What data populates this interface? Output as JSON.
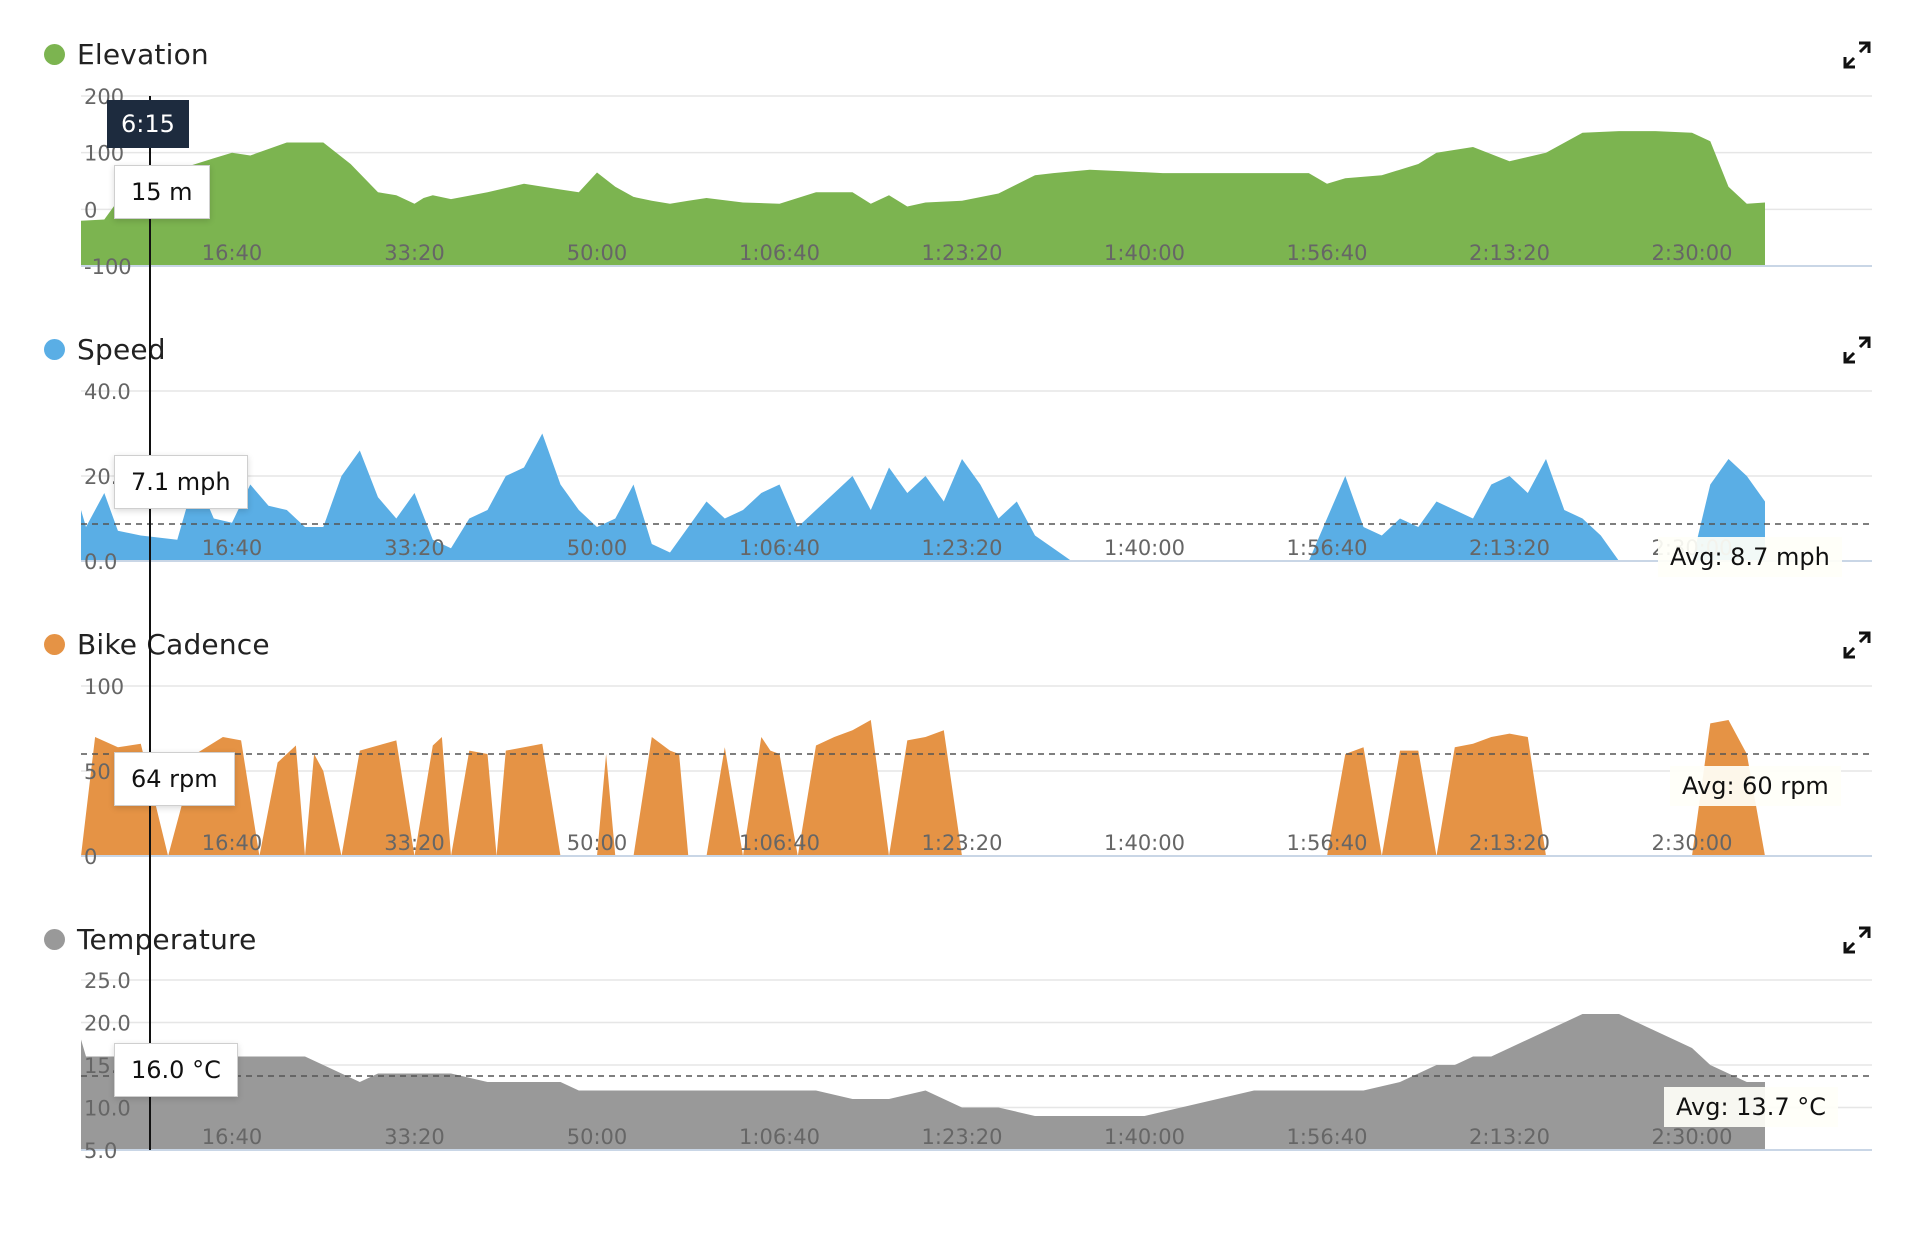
{
  "hover": {
    "time": "6:15"
  },
  "x_ticks": [
    "16:40",
    "33:20",
    "50:00",
    "1:06:40",
    "1:23:20",
    "1:40:00",
    "1:56:40",
    "2:13:20",
    "2:30:00"
  ],
  "panels": [
    {
      "id": "elevation",
      "title": "Elevation",
      "color": "#7cb450",
      "y_ticks": [
        "200",
        "100",
        "0",
        "-100"
      ],
      "tooltip": "15 m",
      "avg_label": null,
      "icon": "expand-icon"
    },
    {
      "id": "speed",
      "title": "Speed",
      "color": "#5aaee5",
      "y_ticks": [
        "40.0",
        "20.0",
        "0.0"
      ],
      "tooltip": "7.1 mph",
      "avg_label": "Avg: 8.7 mph",
      "icon": "expand-icon"
    },
    {
      "id": "cadence",
      "title": "Bike Cadence",
      "color": "#e59345",
      "y_ticks": [
        "100",
        "50",
        "0"
      ],
      "tooltip": "64 rpm",
      "avg_label": "Avg: 60 rpm",
      "icon": "expand-icon"
    },
    {
      "id": "temperature",
      "title": "Temperature",
      "color": "#999999",
      "y_ticks": [
        "25.0",
        "20.0",
        "15.0",
        "10.0",
        "5.0"
      ],
      "tooltip": "16.0 °C",
      "avg_label": "Avg: 13.7 °C",
      "icon": "expand-icon"
    }
  ],
  "chart_data": [
    {
      "type": "area",
      "title": "Elevation",
      "x_unit": "seconds",
      "ylim": [
        -100,
        200
      ],
      "x_range": [
        0,
        9400
      ],
      "avg": null,
      "x": [
        0,
        300,
        375,
        500,
        700,
        900,
        1000,
        1100,
        1300,
        1500,
        1650,
        1800,
        1900,
        2000,
        2050,
        2100,
        2200,
        2400,
        2600,
        2800,
        2900,
        3000,
        3100,
        3200,
        3300,
        3400,
        3500,
        3600,
        3800,
        4000,
        4200,
        4400,
        4500,
        4600,
        4700,
        4800,
        5000,
        5200,
        5400,
        5500,
        5700,
        5900,
        6100,
        6300,
        6600,
        6900,
        7000,
        7100,
        7300,
        7500,
        7600,
        7800,
        8000,
        8200,
        8400,
        8600,
        8800,
        9000,
        9100,
        9200,
        9300,
        9400
      ],
      "values": [
        -20,
        -18,
        15,
        40,
        70,
        90,
        100,
        95,
        118,
        118,
        80,
        30,
        25,
        10,
        20,
        25,
        18,
        30,
        45,
        35,
        30,
        65,
        40,
        22,
        15,
        10,
        15,
        20,
        12,
        10,
        30,
        30,
        10,
        25,
        5,
        12,
        15,
        28,
        60,
        64,
        70,
        67,
        64,
        64,
        64,
        64,
        45,
        55,
        60,
        80,
        100,
        110,
        85,
        100,
        135,
        138,
        138,
        135,
        120,
        40,
        10,
        12
      ]
    },
    {
      "type": "area",
      "title": "Speed",
      "x_unit": "seconds",
      "ylim": [
        0,
        40
      ],
      "x_range": [
        0,
        9400
      ],
      "avg": 8.7,
      "x": [
        0,
        100,
        200,
        300,
        375,
        500,
        700,
        800,
        900,
        1000,
        1100,
        1200,
        1300,
        1400,
        1500,
        1600,
        1700,
        1800,
        1900,
        2000,
        2100,
        2200,
        2300,
        2400,
        2500,
        2600,
        2700,
        2800,
        2900,
        3000,
        3100,
        3200,
        3300,
        3400,
        3500,
        3600,
        3700,
        3800,
        3900,
        4000,
        4100,
        4200,
        4300,
        4400,
        4500,
        4600,
        4700,
        4800,
        4900,
        5000,
        5100,
        5200,
        5300,
        5400,
        5500,
        5600,
        5800,
        6000,
        6200,
        6400,
        6500,
        6600,
        6700,
        6800,
        6900,
        7000,
        7100,
        7200,
        7300,
        7400,
        7500,
        7600,
        7700,
        7800,
        7900,
        8000,
        8100,
        8200,
        8300,
        8400,
        8500,
        8600,
        8700,
        8800,
        8900,
        9000,
        9100,
        9200,
        9300,
        9400
      ],
      "values": [
        5,
        12,
        8,
        16,
        7.1,
        6,
        5,
        20,
        10,
        9,
        18,
        13,
        12,
        8,
        8,
        20,
        26,
        15,
        10,
        16,
        5,
        3,
        10,
        12,
        20,
        22,
        30,
        18,
        12,
        8,
        10,
        18,
        4,
        2,
        8,
        14,
        10,
        12,
        16,
        18,
        8,
        12,
        16,
        20,
        12,
        22,
        16,
        20,
        14,
        24,
        18,
        10,
        14,
        6,
        3,
        0,
        0,
        0,
        0,
        0,
        0,
        0,
        0,
        0,
        0,
        10,
        20,
        8,
        6,
        10,
        8,
        14,
        12,
        10,
        18,
        20,
        16,
        24,
        12,
        10,
        6,
        0,
        0,
        0,
        0,
        0,
        18,
        24,
        20,
        14
      ]
    },
    {
      "type": "area",
      "title": "Bike Cadence",
      "x_unit": "seconds",
      "ylim": [
        0,
        100
      ],
      "x_range": [
        0,
        9400
      ],
      "avg": 60,
      "x": [
        0,
        80,
        150,
        250,
        375,
        500,
        650,
        800,
        950,
        1050,
        1150,
        1250,
        1350,
        1400,
        1450,
        1500,
        1600,
        1700,
        1800,
        1900,
        2000,
        2100,
        2150,
        2200,
        2300,
        2400,
        2450,
        2500,
        2600,
        2700,
        2800,
        2900,
        3000,
        3050,
        3100,
        3200,
        3300,
        3400,
        3450,
        3500,
        3600,
        3700,
        3800,
        3900,
        3950,
        4000,
        4100,
        4200,
        4300,
        4400,
        4500,
        4600,
        4700,
        4800,
        4900,
        5000,
        5100,
        5200,
        5300,
        5400,
        5500,
        5600,
        5700,
        5800,
        5900,
        6000,
        6200,
        6400,
        6500,
        6600,
        6700,
        6800,
        6900,
        7000,
        7100,
        7200,
        7300,
        7400,
        7500,
        7600,
        7700,
        7800,
        7900,
        8000,
        8100,
        8200,
        8300,
        8400,
        8500,
        8600,
        8700,
        8800,
        8900,
        9000,
        9100,
        9200,
        9300,
        9400
      ],
      "values": [
        0,
        60,
        0,
        70,
        64,
        66,
        0,
        60,
        70,
        68,
        0,
        55,
        65,
        0,
        60,
        50,
        0,
        62,
        65,
        68,
        0,
        65,
        70,
        0,
        62,
        60,
        0,
        62,
        64,
        66,
        0,
        0,
        0,
        60,
        0,
        0,
        70,
        62,
        60,
        0,
        0,
        64,
        0,
        70,
        62,
        60,
        0,
        65,
        70,
        74,
        80,
        0,
        68,
        70,
        74,
        0,
        0,
        0,
        0,
        0,
        0,
        0,
        0,
        0,
        0,
        0,
        0,
        0,
        0,
        0,
        0,
        0,
        0,
        0,
        60,
        64,
        0,
        62,
        62,
        0,
        64,
        66,
        70,
        72,
        70,
        0,
        0,
        0,
        0,
        0,
        0,
        0,
        0,
        0,
        78,
        80,
        60,
        0
      ]
    },
    {
      "type": "area",
      "title": "Temperature",
      "x_unit": "seconds",
      "ylim": [
        5,
        25
      ],
      "x_range": [
        0,
        9400
      ],
      "avg": 13.7,
      "x": [
        0,
        50,
        100,
        150,
        200,
        375,
        500,
        800,
        1000,
        1200,
        1400,
        1500,
        1600,
        1700,
        1800,
        1900,
        2000,
        2200,
        2400,
        2600,
        2800,
        2900,
        3000,
        3200,
        3400,
        3600,
        3800,
        4000,
        4200,
        4400,
        4600,
        4800,
        5000,
        5200,
        5400,
        5600,
        5800,
        6000,
        6200,
        6400,
        6600,
        6800,
        7000,
        7200,
        7400,
        7500,
        7600,
        7700,
        7800,
        7900,
        8000,
        8100,
        8200,
        8300,
        8400,
        8500,
        8600,
        8700,
        8800,
        8900,
        9000,
        9100,
        9200,
        9300,
        9400
      ],
      "values": [
        18,
        19,
        19,
        18,
        16,
        16,
        16,
        16,
        16,
        16,
        16,
        15,
        14,
        13,
        14,
        14,
        14,
        14,
        13,
        13,
        13,
        12,
        12,
        12,
        12,
        12,
        12,
        12,
        12,
        11,
        11,
        12,
        10,
        10,
        9,
        9,
        9,
        9,
        10,
        11,
        12,
        12,
        12,
        12,
        13,
        14,
        15,
        15,
        16,
        16,
        17,
        18,
        19,
        20,
        21,
        21,
        21,
        20,
        19,
        18,
        17,
        15,
        14,
        13,
        13
      ]
    }
  ]
}
